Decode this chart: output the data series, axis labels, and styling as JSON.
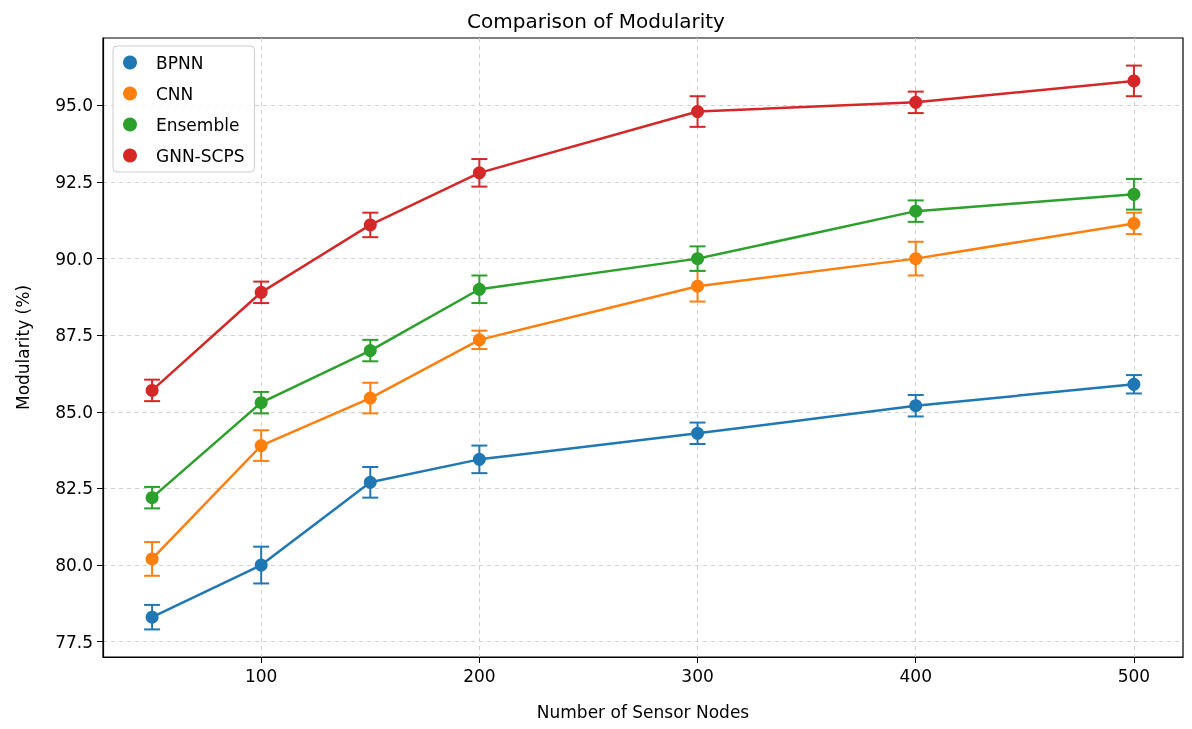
{
  "chart_data": {
    "type": "line",
    "title": "Comparison of Modularity",
    "xlabel": "Number of Sensor Nodes",
    "ylabel": "Modularity (%)",
    "x": [
      50,
      100,
      150,
      200,
      300,
      400,
      500
    ],
    "series": [
      {
        "name": "BPNN",
        "color": "#1f77b4",
        "values": [
          78.3,
          80.0,
          82.7,
          83.45,
          84.3,
          85.2,
          85.9
        ],
        "errors": [
          0.4,
          0.6,
          0.5,
          0.45,
          0.35,
          0.35,
          0.3
        ]
      },
      {
        "name": "CNN",
        "color": "#ff7f0e",
        "values": [
          80.2,
          83.9,
          85.45,
          87.35,
          89.1,
          90.0,
          91.15
        ],
        "errors": [
          0.55,
          0.5,
          0.5,
          0.3,
          0.5,
          0.55,
          0.35
        ]
      },
      {
        "name": "Ensemble",
        "color": "#2ca02c",
        "values": [
          82.2,
          85.3,
          87.0,
          89.0,
          90.0,
          91.55,
          92.1
        ],
        "errors": [
          0.35,
          0.35,
          0.35,
          0.45,
          0.4,
          0.35,
          0.5
        ]
      },
      {
        "name": "GNN-SCPS",
        "color": "#d62728",
        "values": [
          85.7,
          88.9,
          91.1,
          92.8,
          94.8,
          95.1,
          95.8
        ],
        "errors": [
          0.35,
          0.35,
          0.4,
          0.45,
          0.5,
          0.35,
          0.5
        ]
      }
    ],
    "xlim": [
      27.5,
      522.5
    ],
    "xticks": [
      100,
      200,
      300,
      400,
      500
    ],
    "ylim": [
      77.0,
      97.2
    ],
    "yticks": [
      77.5,
      {
        "value": 80,
        "label": "80.0"
      },
      82.5,
      {
        "value": 85,
        "label": "85.0"
      },
      87.5,
      {
        "value": 90,
        "label": "90.0"
      },
      92.5,
      {
        "value": 95,
        "label": "95.0"
      }
    ],
    "grid": true,
    "legend": "top left",
    "marker": "circle",
    "line_style": "solid"
  }
}
